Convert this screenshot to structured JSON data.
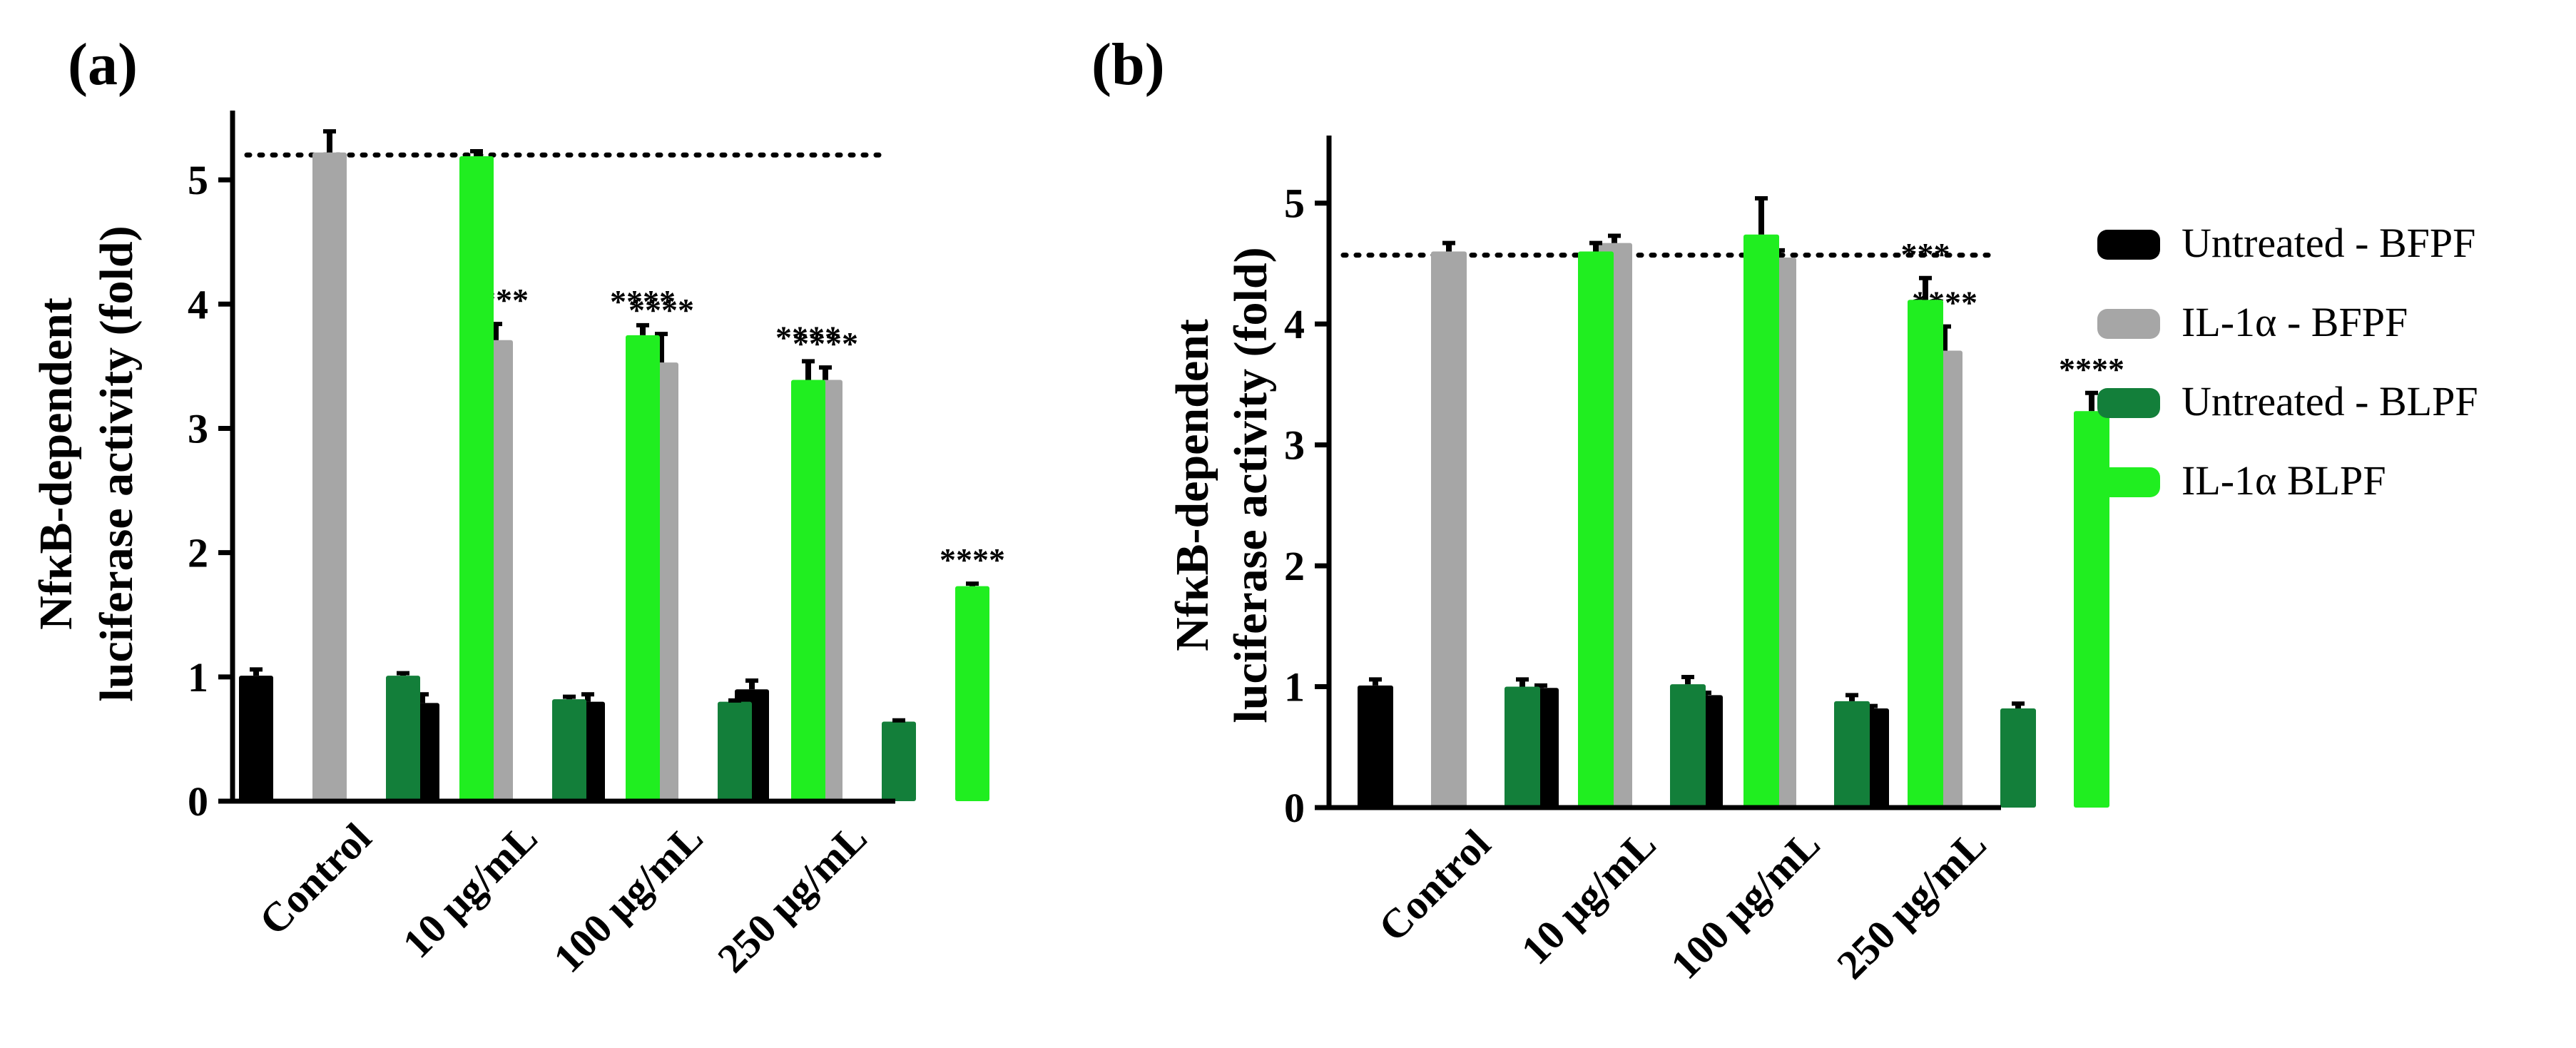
{
  "figure": {
    "legend": {
      "entries": [
        {
          "label": "Untreated - BFPF",
          "color": "#000000"
        },
        {
          "label": "IL-1α - BFPF",
          "color": "#a6a6a6"
        },
        {
          "label": "Untreated - BLPF",
          "color": "#137f3a"
        },
        {
          "label": "IL-1α BLPF",
          "color": "#20ee20"
        }
      ]
    }
  },
  "chart_data": [
    {
      "type": "bar",
      "panel_label": "(a)",
      "ylabel_line1": "NfκB-dependent",
      "ylabel_line2": "luciferase activity (fold)",
      "categories": [
        "Control",
        "10 μg/mL",
        "100 μg/mL",
        "250 μg/mL"
      ],
      "ylim": [
        0,
        5.5
      ],
      "yticks": [
        "0",
        "1",
        "2",
        "3",
        "4",
        "5"
      ],
      "reference_line": 5.2,
      "series": [
        {
          "name": "Untreated - BFPF",
          "color": "#000000",
          "values": [
            1.01,
            0.79,
            0.8,
            0.9
          ],
          "errors": [
            0.05,
            0.07,
            0.06,
            0.07
          ],
          "annotations": [
            "",
            "",
            "",
            ""
          ]
        },
        {
          "name": "IL-1α - BFPF",
          "color": "#a6a6a6",
          "values": [
            5.22,
            3.71,
            3.53,
            3.39
          ],
          "errors": [
            0.17,
            0.13,
            0.23,
            0.1
          ],
          "annotations": [
            "",
            "****",
            "****",
            "****"
          ]
        },
        {
          "name": "Untreated - BLPF",
          "color": "#137f3a",
          "values": [
            1.01,
            0.82,
            0.8,
            0.64
          ],
          "errors": [
            0.02,
            0.02,
            0.01,
            0.01
          ],
          "annotations": [
            "",
            "",
            "",
            ""
          ]
        },
        {
          "name": "IL-1α BLPF",
          "color": "#20ee20",
          "values": [
            5.19,
            3.75,
            3.39,
            1.73
          ],
          "errors": [
            0.04,
            0.08,
            0.15,
            0.02
          ],
          "annotations": [
            "",
            "****",
            "****",
            "****"
          ]
        }
      ]
    },
    {
      "type": "bar",
      "panel_label": "(b)",
      "ylabel_line1": "NfκB-dependent",
      "ylabel_line2": "luciferase activity (fold)",
      "categories": [
        "Control",
        "10 μg/mL",
        "100 μg/mL",
        "250 μg/mL"
      ],
      "ylim": [
        0,
        5.5
      ],
      "yticks": [
        "0",
        "1",
        "2",
        "3",
        "4",
        "5"
      ],
      "reference_line": 4.57,
      "series": [
        {
          "name": "Untreated - BFPF",
          "color": "#000000",
          "values": [
            1.01,
            0.99,
            0.93,
            0.82
          ],
          "errors": [
            0.05,
            0.02,
            0.02,
            0.02
          ],
          "annotations": [
            "",
            "",
            "",
            ""
          ]
        },
        {
          "name": "IL-1α - BFPF",
          "color": "#a6a6a6",
          "values": [
            4.6,
            4.67,
            4.55,
            3.78
          ],
          "errors": [
            0.07,
            0.06,
            0.06,
            0.2
          ],
          "annotations": [
            "",
            "",
            "",
            "****"
          ]
        },
        {
          "name": "Untreated - BLPF",
          "color": "#137f3a",
          "values": [
            1.0,
            1.02,
            0.88,
            0.82
          ],
          "errors": [
            0.06,
            0.06,
            0.05,
            0.04
          ],
          "annotations": [
            "",
            "",
            "",
            ""
          ]
        },
        {
          "name": "IL-1α BLPF",
          "color": "#20ee20",
          "values": [
            4.6,
            4.74,
            4.2,
            3.28
          ],
          "errors": [
            0.07,
            0.3,
            0.18,
            0.15
          ],
          "annotations": [
            "",
            "",
            "***",
            "****"
          ]
        }
      ]
    }
  ]
}
